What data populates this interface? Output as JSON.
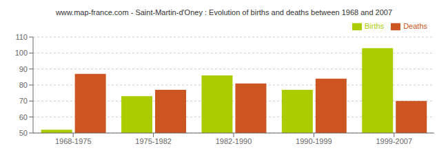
{
  "chart_data": {
    "type": "bar",
    "title": "www.map-france.com - Saint-Martin-d'Oney : Evolution of births and deaths between 1968 and 2007",
    "categories": [
      "1968-1975",
      "1975-1982",
      "1982-1990",
      "1990-1999",
      "1999-2007"
    ],
    "series": [
      {
        "name": "Births",
        "color": "#aacc00",
        "values": [
          52,
          73,
          86,
          77,
          103
        ]
      },
      {
        "name": "Deaths",
        "color": "#cc5522",
        "values": [
          87,
          77,
          81,
          84,
          70
        ]
      }
    ],
    "ylim": [
      50,
      110
    ],
    "yticks": [
      50,
      60,
      70,
      80,
      90,
      100,
      110
    ],
    "grid": true,
    "legend": "upper right"
  }
}
